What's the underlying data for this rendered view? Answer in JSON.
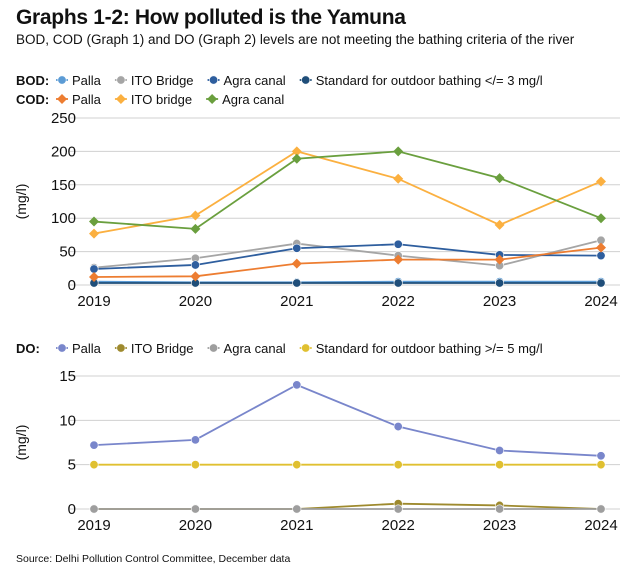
{
  "title": "Graphs 1-2: How polluted is the Yamuna",
  "subtitle": "BOD, COD (Graph 1) and DO (Graph 2) levels are not meeting the bathing criteria of the river",
  "source": "Source: Delhi Pollution Control Committee, December data",
  "chart_data": [
    {
      "type": "line",
      "ylabel": "(mg/l)",
      "ylim": [
        0,
        250
      ],
      "yticks": [
        "0",
        "50",
        "100",
        "150",
        "200",
        "250"
      ],
      "categories": [
        "2019",
        "2020",
        "2021",
        "2022",
        "2023",
        "2024"
      ],
      "grid": true,
      "legend_rows": [
        {
          "label": "BOD:",
          "series": [
            0,
            1,
            2,
            3
          ]
        },
        {
          "label": "COD:",
          "series": [
            4,
            5,
            6
          ]
        }
      ],
      "series": [
        {
          "name": "Palla",
          "color": "#5b9bd5",
          "marker": "circle",
          "values": [
            5,
            4,
            4,
            5,
            5,
            5
          ]
        },
        {
          "name": "ITO Bridge",
          "color": "#a5a5a5",
          "marker": "circle",
          "values": [
            26,
            40,
            62,
            44,
            29,
            67
          ]
        },
        {
          "name": "Agra canal",
          "color": "#2e5e9e",
          "marker": "circle",
          "values": [
            24,
            30,
            55,
            61,
            45,
            44
          ]
        },
        {
          "name": "Standard for outdoor bathing </= 3 mg/l",
          "color": "#1f4e79",
          "marker": "circle",
          "values": [
            3,
            3,
            3,
            3,
            3,
            3
          ]
        },
        {
          "name": "Palla",
          "color": "#ed7d31",
          "marker": "diamond",
          "values": [
            12,
            13,
            32,
            38,
            38,
            56
          ]
        },
        {
          "name": "ITO bridge",
          "color": "#fbb040",
          "marker": "diamond",
          "values": [
            77,
            104,
            200,
            159,
            90,
            155
          ]
        },
        {
          "name": "Agra canal",
          "color": "#6a9f3e",
          "marker": "diamond",
          "values": [
            95,
            84,
            189,
            200,
            160,
            100
          ]
        }
      ]
    },
    {
      "type": "line",
      "ylabel": "(mg/l)",
      "ylim": [
        0,
        15
      ],
      "yticks": [
        "0",
        "5",
        "10",
        "15"
      ],
      "categories": [
        "2019",
        "2020",
        "2021",
        "2022",
        "2023",
        "2024"
      ],
      "grid": true,
      "legend_rows": [
        {
          "label": "DO:",
          "series": [
            0,
            1,
            2,
            3
          ]
        }
      ],
      "series": [
        {
          "name": "Palla",
          "color": "#7986cb",
          "marker": "circle",
          "values": [
            7.2,
            7.8,
            14,
            9.3,
            6.6,
            6.0
          ]
        },
        {
          "name": "ITO Bridge",
          "color": "#9e8a2e",
          "marker": "circle",
          "values": [
            0,
            0,
            0,
            0.6,
            0.4,
            0
          ]
        },
        {
          "name": "Agra canal",
          "color": "#9e9e9e",
          "marker": "circle",
          "values": [
            0,
            0,
            0,
            0,
            0,
            0
          ]
        },
        {
          "name": "Standard for outdoor bathing >/= 5 mg/l",
          "color": "#e0c030",
          "marker": "circle",
          "values": [
            5,
            5,
            5,
            5,
            5,
            5
          ]
        }
      ]
    }
  ]
}
